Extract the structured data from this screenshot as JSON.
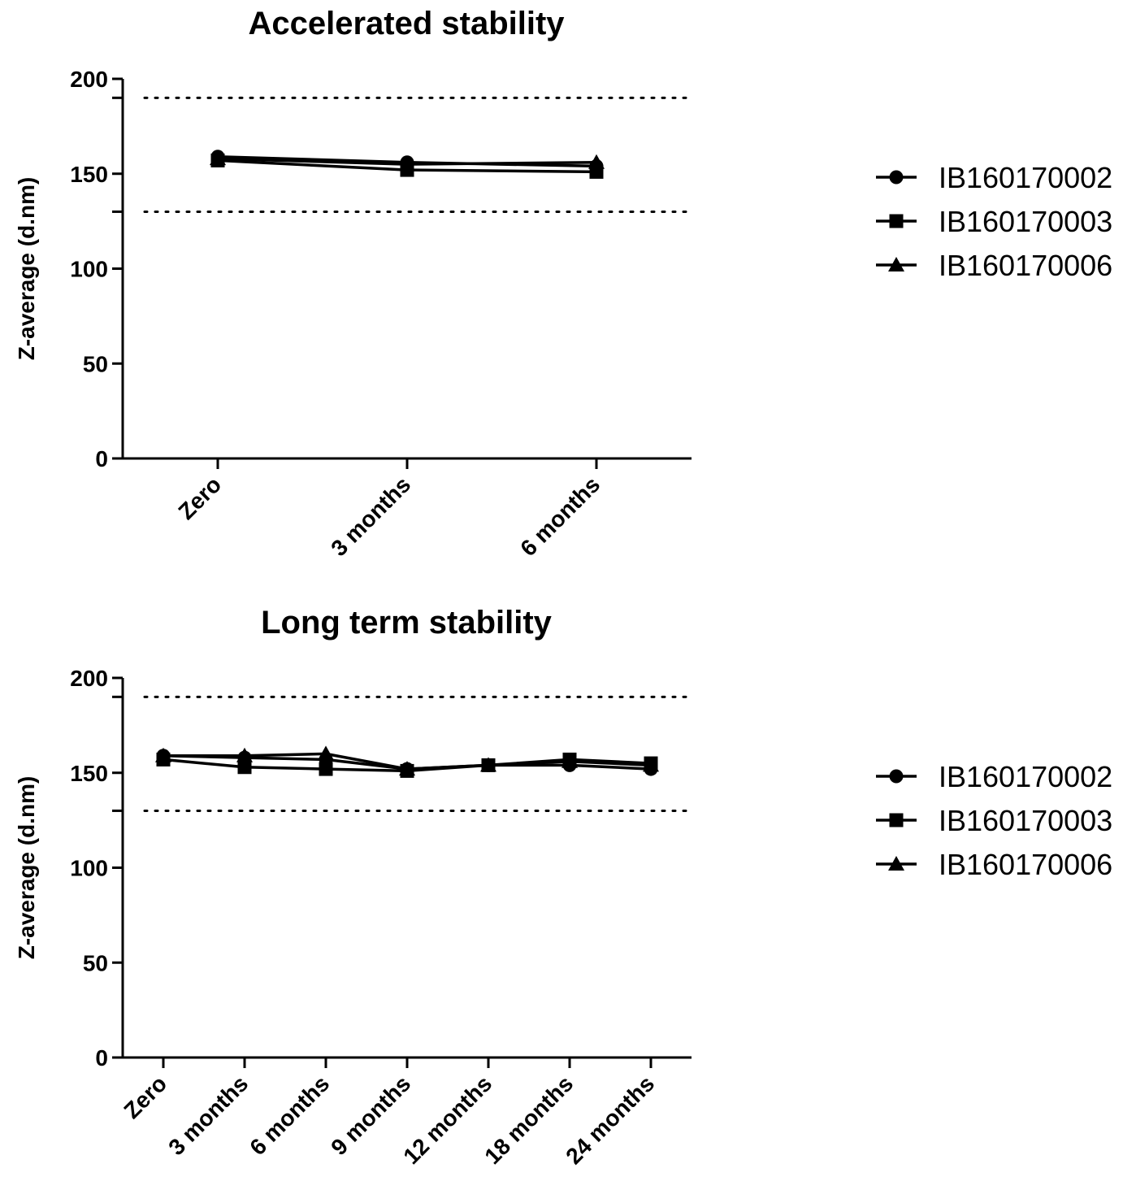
{
  "chart_data": [
    {
      "type": "line",
      "title": "Accelerated stability",
      "xlabel": "",
      "ylabel": "Z-average (d.nm)",
      "categories": [
        "Zero",
        "3 months",
        "6 months"
      ],
      "ylim": [
        0,
        200
      ],
      "yticks": [
        "0",
        "50",
        "100",
        "150",
        "200"
      ],
      "reference_lines": [
        130,
        190
      ],
      "series": [
        {
          "name": "IB160170002",
          "marker": "circle",
          "values": [
            159,
            156,
            154
          ]
        },
        {
          "name": "IB160170003",
          "marker": "square",
          "values": [
            157,
            152,
            151
          ]
        },
        {
          "name": "IB160170006",
          "marker": "triangle",
          "values": [
            158,
            155,
            156
          ]
        }
      ]
    },
    {
      "type": "line",
      "title": "Long term stability",
      "xlabel": "",
      "ylabel": "Z-average (d.nm)",
      "categories": [
        "Zero",
        "3 months",
        "6 months",
        "9 months",
        "12 months",
        "18 months",
        "24 months"
      ],
      "ylim": [
        0,
        200
      ],
      "yticks": [
        "0",
        "50",
        "100",
        "150",
        "200"
      ],
      "reference_lines": [
        130,
        190
      ],
      "series": [
        {
          "name": "IB160170002",
          "marker": "circle",
          "values": [
            159,
            158,
            157,
            152,
            154,
            154,
            152
          ]
        },
        {
          "name": "IB160170003",
          "marker": "square",
          "values": [
            157,
            153,
            152,
            151,
            154,
            157,
            155
          ]
        },
        {
          "name": "IB160170006",
          "marker": "triangle",
          "values": [
            159,
            159,
            160,
            152,
            154,
            156,
            154
          ]
        }
      ]
    }
  ]
}
